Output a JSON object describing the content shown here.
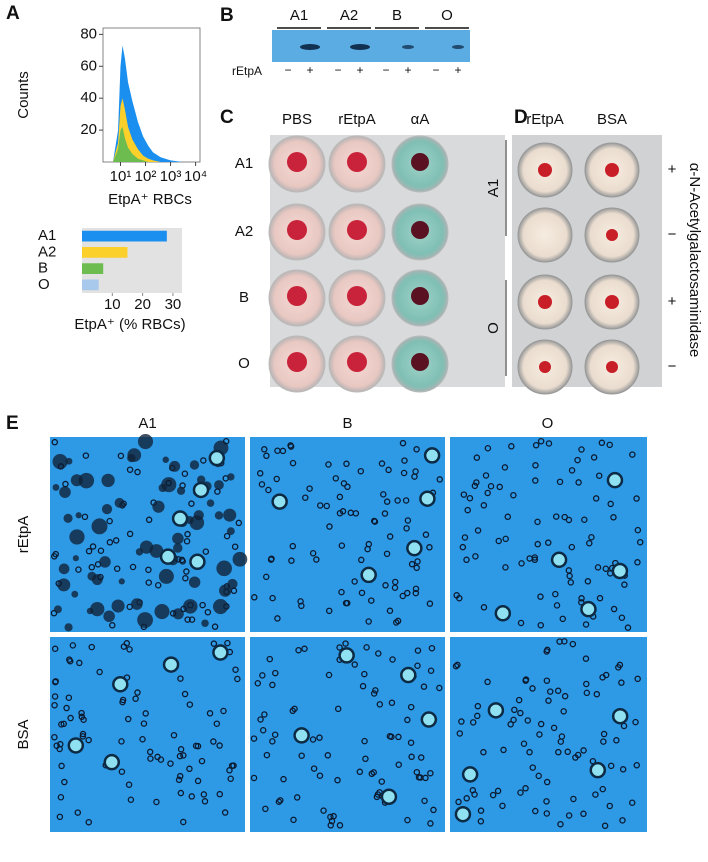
{
  "chart_data": [
    {
      "type": "area",
      "panel_label": "A",
      "ylabel": "Counts",
      "xlabel": "EtpA⁺ RBCs",
      "xscale": "log",
      "x": [
        5,
        8,
        10,
        12,
        15,
        20,
        30,
        50,
        80,
        130,
        200,
        400,
        1000,
        3000
      ],
      "series": [
        {
          "name": "A1",
          "color": "#1a8ff0",
          "values": [
            0,
            20,
            60,
            73,
            65,
            50,
            38,
            25,
            16,
            10,
            6,
            3,
            1,
            0
          ]
        },
        {
          "name": "A2",
          "color": "#fcd02a",
          "values": [
            0,
            12,
            35,
            40,
            33,
            22,
            14,
            8,
            4,
            2,
            1,
            0,
            0,
            0
          ]
        },
        {
          "name": "B",
          "color": "#6cbc50",
          "values": [
            0,
            8,
            20,
            22,
            15,
            9,
            5,
            2,
            1,
            0,
            0,
            0,
            0,
            0
          ]
        }
      ],
      "xlim": [
        2,
        15000
      ],
      "xticks": [
        {
          "value": 10,
          "label": "10¹"
        },
        {
          "value": 100,
          "label": "10²"
        },
        {
          "value": 1000,
          "label": "10³"
        },
        {
          "value": 10000,
          "label": "10⁴"
        }
      ],
      "ylim": [
        0,
        84
      ],
      "yticks": [
        20,
        40,
        60,
        80
      ]
    },
    {
      "type": "bar",
      "orientation": "horizontal",
      "xlabel": "EtpA⁺ (% RBCs)",
      "categories": [
        "A1",
        "A2",
        "B",
        "O"
      ],
      "values": [
        28,
        15,
        7,
        5.5
      ],
      "colors": [
        "#1a8ff0",
        "#fcd02a",
        "#6cbc50",
        "#a8c8ec"
      ],
      "xlim": [
        0,
        33
      ],
      "xticks": [
        10,
        20,
        30
      ],
      "background": "#e2e2e2"
    }
  ],
  "blot": {
    "panel_label": "B",
    "lanes": [
      "A1",
      "A2",
      "B",
      "O"
    ],
    "treatment": "rEtpA",
    "signs": [
      "−",
      "+",
      "−",
      "+",
      "−",
      "+",
      "−",
      "+"
    ]
  },
  "plate_c": {
    "panel_label": "C",
    "columns": [
      "PBS",
      "rEtpA",
      "αA"
    ],
    "rows": [
      "A1",
      "A2",
      "B",
      "O"
    ]
  },
  "plate_d": {
    "panel_label": "D",
    "columns": [
      "rEtpA",
      "BSA"
    ],
    "groups": [
      "A1",
      "O"
    ],
    "treatment": "α-N-Acetylgalactosaminidase",
    "signs": [
      "+",
      "−",
      "+",
      "−"
    ]
  },
  "micrographs": {
    "panel_label": "E",
    "columns": [
      "A1",
      "B",
      "O"
    ],
    "rows": [
      "rEtpA",
      "BSA"
    ]
  }
}
